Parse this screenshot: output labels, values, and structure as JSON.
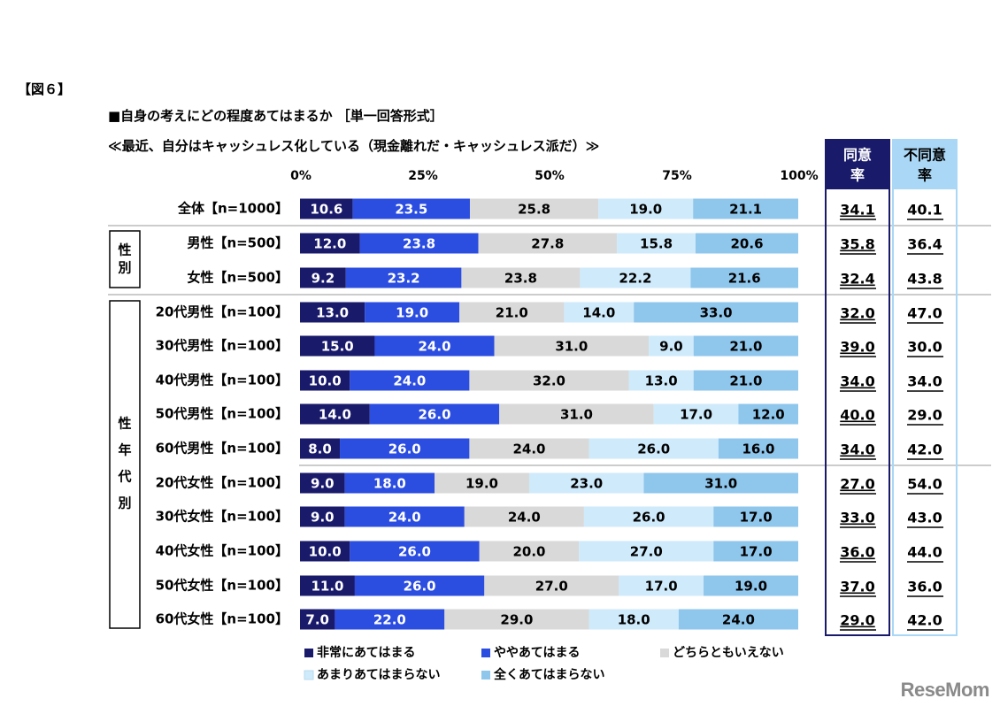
{
  "figure_label": "【図６】",
  "question_title": "■自身の考えにどの程度あてはまるか ［単一回答形式］",
  "question_sub": "≪最近、自分はキャッシュレス化している（現金離れだ・キャッシュレス派だ）≫",
  "logo_text": "ReseMom",
  "colors": {
    "very_agree": "#1a1a6b",
    "somewhat_agree": "#2b4de0",
    "neutral": "#d9d9d9",
    "somewhat_disagree": "#cfeafa",
    "strongly_disagree": "#8fc6ec",
    "agree_box": "#1a1a6b",
    "disagree_box": "#a9d7f5"
  },
  "group_labels": [
    "性別",
    "性年代別"
  ],
  "chart_data": {
    "type": "bar",
    "orientation": "horizontal-stacked-100",
    "x_ticks": [
      "0%",
      "25%",
      "50%",
      "75%",
      "100%"
    ],
    "xlim": [
      0,
      100
    ],
    "categories": [
      "全体【n=1000】",
      "男性【n=500】",
      "女性【n=500】",
      "20代男性【n=100】",
      "30代男性【n=100】",
      "40代男性【n=100】",
      "50代男性【n=100】",
      "60代男性【n=100】",
      "20代女性【n=100】",
      "30代女性【n=100】",
      "40代女性【n=100】",
      "50代女性【n=100】",
      "60代女性【n=100】"
    ],
    "series": [
      {
        "name": "非常にあてはまる",
        "values": [
          10.6,
          12.0,
          9.2,
          13.0,
          15.0,
          10.0,
          14.0,
          8.0,
          9.0,
          9.0,
          10.0,
          11.0,
          7.0
        ]
      },
      {
        "name": "ややあてはまる",
        "values": [
          23.5,
          23.8,
          23.2,
          19.0,
          24.0,
          24.0,
          26.0,
          26.0,
          18.0,
          24.0,
          26.0,
          26.0,
          22.0
        ]
      },
      {
        "name": "どちらともいえない",
        "values": [
          25.8,
          27.8,
          23.8,
          21.0,
          31.0,
          32.0,
          31.0,
          24.0,
          19.0,
          24.0,
          20.0,
          27.0,
          29.0
        ]
      },
      {
        "name": "あまりあてはまらない",
        "values": [
          19.0,
          15.8,
          22.2,
          14.0,
          9.0,
          13.0,
          17.0,
          26.0,
          23.0,
          26.0,
          27.0,
          17.0,
          18.0
        ]
      },
      {
        "name": "全くあてはまらない",
        "values": [
          21.1,
          20.6,
          21.6,
          33.0,
          21.0,
          21.0,
          12.0,
          16.0,
          31.0,
          17.0,
          17.0,
          19.0,
          24.0
        ]
      }
    ],
    "agree_header": "同意率",
    "disagree_header": "不同意率",
    "agree_rate": [
      "34.1",
      "35.8",
      "32.4",
      "32.0",
      "39.0",
      "34.0",
      "40.0",
      "34.0",
      "27.0",
      "33.0",
      "36.0",
      "37.0",
      "29.0"
    ],
    "disagree_rate": [
      "40.1",
      "36.4",
      "43.8",
      "47.0",
      "30.0",
      "34.0",
      "29.0",
      "42.0",
      "54.0",
      "43.0",
      "44.0",
      "36.0",
      "42.0"
    ],
    "legend_position": "bottom"
  }
}
